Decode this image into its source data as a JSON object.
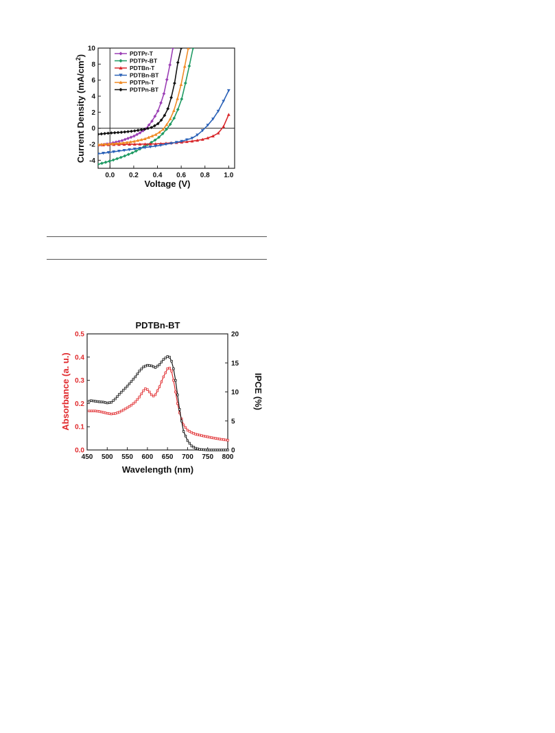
{
  "chart_data": [
    {
      "type": "line",
      "title": "",
      "xlabel": "Voltage (V)",
      "ylabel": "Current Density (mA/cm",
      "ylabel_sup": "2",
      "ylabel_tail": ")",
      "xlim": [
        -0.1,
        1.05
      ],
      "ylim": [
        -5,
        10
      ],
      "xticks": [
        "0.0",
        "0.2",
        "0.4",
        "0.6",
        "0.8",
        "1.0"
      ],
      "xtick_values": [
        0.0,
        0.2,
        0.4,
        0.6,
        0.8,
        1.0
      ],
      "yticks": [
        "-4",
        "-2",
        "0",
        "2",
        "4",
        "6",
        "8",
        "10"
      ],
      "ytick_values": [
        -4,
        -2,
        0,
        2,
        4,
        6,
        8,
        10
      ],
      "legend_position": "top-left",
      "series": [
        {
          "name": "PDTPr-T",
          "color": "#9b3fb5",
          "marker": "diamond",
          "points": [
            [
              -0.1,
              -2.15
            ],
            [
              0.0,
              -1.9
            ],
            [
              0.1,
              -1.55
            ],
            [
              0.2,
              -1.0
            ],
            [
              0.25,
              -0.6
            ],
            [
              0.3,
              -0.1
            ],
            [
              0.35,
              0.8
            ],
            [
              0.4,
              2.0
            ],
            [
              0.45,
              4.0
            ],
            [
              0.5,
              7.5
            ],
            [
              0.53,
              10.0
            ]
          ]
        },
        {
          "name": "PDTPr-BT",
          "color": "#1f9a63",
          "marker": "diamond",
          "points": [
            [
              -0.1,
              -4.5
            ],
            [
              0.0,
              -4.1
            ],
            [
              0.1,
              -3.6
            ],
            [
              0.2,
              -3.0
            ],
            [
              0.3,
              -2.2
            ],
            [
              0.4,
              -1.3
            ],
            [
              0.45,
              -0.6
            ],
            [
              0.5,
              0.3
            ],
            [
              0.55,
              1.5
            ],
            [
              0.6,
              3.4
            ],
            [
              0.65,
              6.5
            ],
            [
              0.7,
              10.0
            ]
          ]
        },
        {
          "name": "PDTBn-T",
          "color": "#d8262a",
          "marker": "triangle-up",
          "points": [
            [
              -0.1,
              -2.1
            ],
            [
              0.0,
              -2.05
            ],
            [
              0.2,
              -2.0
            ],
            [
              0.4,
              -1.95
            ],
            [
              0.6,
              -1.75
            ],
            [
              0.7,
              -1.6
            ],
            [
              0.8,
              -1.35
            ],
            [
              0.9,
              -0.8
            ],
            [
              0.95,
              0.0
            ],
            [
              1.0,
              1.7
            ]
          ]
        },
        {
          "name": "PDTBn-BT",
          "color": "#2b62b8",
          "marker": "triangle-down",
          "points": [
            [
              -0.1,
              -3.2
            ],
            [
              0.0,
              -3.0
            ],
            [
              0.2,
              -2.6
            ],
            [
              0.4,
              -2.2
            ],
            [
              0.6,
              -1.65
            ],
            [
              0.7,
              -1.2
            ],
            [
              0.75,
              -0.7
            ],
            [
              0.8,
              0.0
            ],
            [
              0.85,
              0.8
            ],
            [
              0.9,
              1.8
            ],
            [
              0.95,
              3.2
            ],
            [
              1.0,
              4.7
            ]
          ]
        },
        {
          "name": "PDTPn-T",
          "color": "#f08a24",
          "marker": "triangle-up",
          "points": [
            [
              -0.1,
              -2.05
            ],
            [
              0.0,
              -1.95
            ],
            [
              0.1,
              -1.85
            ],
            [
              0.2,
              -1.65
            ],
            [
              0.3,
              -1.3
            ],
            [
              0.4,
              -0.7
            ],
            [
              0.45,
              -0.1
            ],
            [
              0.5,
              0.9
            ],
            [
              0.55,
              2.6
            ],
            [
              0.6,
              5.5
            ],
            [
              0.64,
              8.5
            ],
            [
              0.66,
              10.0
            ]
          ]
        },
        {
          "name": "PDTPn-BT",
          "color": "#111111",
          "marker": "diamond",
          "points": [
            [
              -0.1,
              -0.75
            ],
            [
              0.0,
              -0.6
            ],
            [
              0.1,
              -0.5
            ],
            [
              0.2,
              -0.35
            ],
            [
              0.3,
              -0.1
            ],
            [
              0.35,
              0.1
            ],
            [
              0.4,
              0.5
            ],
            [
              0.45,
              1.3
            ],
            [
              0.5,
              2.8
            ],
            [
              0.55,
              6.0
            ],
            [
              0.58,
              9.0
            ],
            [
              0.6,
              10.0
            ]
          ]
        }
      ]
    },
    {
      "type": "line",
      "title": "PDTBn-BT",
      "xlabel": "Wavelength (nm)",
      "ylabel_left": "Absorbance (a. u.)",
      "ylabel_right": "IPCE (%)",
      "xlim": [
        450,
        800
      ],
      "ylim_left": [
        0.0,
        0.5
      ],
      "ylim_right": [
        0,
        20
      ],
      "xticks": [
        "450",
        "500",
        "550",
        "600",
        "650",
        "700",
        "750",
        "800"
      ],
      "xtick_values": [
        450,
        500,
        550,
        600,
        650,
        700,
        750,
        800
      ],
      "yticks_left": [
        "0.0",
        "0.1",
        "0.2",
        "0.3",
        "0.4",
        "0.5"
      ],
      "ytick_left_values": [
        0.0,
        0.1,
        0.2,
        0.3,
        0.4,
        0.5
      ],
      "yticks_right": [
        "0",
        "5",
        "10",
        "15",
        "20"
      ],
      "ytick_right_values": [
        0,
        5,
        10,
        15,
        20
      ],
      "left_axis_color": "#e0282b",
      "series": [
        {
          "name": "Absorbance",
          "axis": "left",
          "color": "#e0282b",
          "points": [
            [
              455,
              0.168
            ],
            [
              470,
              0.168
            ],
            [
              480,
              0.166
            ],
            [
              490,
              0.162
            ],
            [
              500,
              0.158
            ],
            [
              510,
              0.155
            ],
            [
              520,
              0.157
            ],
            [
              530,
              0.163
            ],
            [
              540,
              0.172
            ],
            [
              550,
              0.182
            ],
            [
              560,
              0.193
            ],
            [
              570,
              0.207
            ],
            [
              580,
              0.228
            ],
            [
              590,
              0.255
            ],
            [
              595,
              0.264
            ],
            [
              600,
              0.26
            ],
            [
              605,
              0.25
            ],
            [
              610,
              0.238
            ],
            [
              615,
              0.232
            ],
            [
              620,
              0.238
            ],
            [
              630,
              0.272
            ],
            [
              640,
              0.315
            ],
            [
              650,
              0.35
            ],
            [
              653,
              0.358
            ],
            [
              660,
              0.34
            ],
            [
              665,
              0.3
            ],
            [
              670,
              0.25
            ],
            [
              675,
              0.2
            ],
            [
              680,
              0.16
            ],
            [
              690,
              0.108
            ],
            [
              700,
              0.085
            ],
            [
              710,
              0.075
            ],
            [
              720,
              0.068
            ],
            [
              740,
              0.06
            ],
            [
              760,
              0.053
            ],
            [
              780,
              0.047
            ],
            [
              800,
              0.042
            ]
          ]
        },
        {
          "name": "IPCE",
          "axis": "right",
          "color": "#111111",
          "points": [
            [
              455,
              8.4
            ],
            [
              460,
              8.5
            ],
            [
              470,
              8.4
            ],
            [
              480,
              8.3
            ],
            [
              490,
              8.25
            ],
            [
              500,
              8.1
            ],
            [
              510,
              8.2
            ],
            [
              520,
              8.8
            ],
            [
              530,
              9.6
            ],
            [
              540,
              10.3
            ],
            [
              550,
              11.0
            ],
            [
              560,
              11.8
            ],
            [
              570,
              12.6
            ],
            [
              580,
              13.6
            ],
            [
              590,
              14.3
            ],
            [
              600,
              14.6
            ],
            [
              610,
              14.5
            ],
            [
              620,
              14.2
            ],
            [
              630,
              14.7
            ],
            [
              640,
              15.6
            ],
            [
              650,
              16.1
            ],
            [
              655,
              16.0
            ],
            [
              660,
              15.3
            ],
            [
              665,
              14.0
            ],
            [
              670,
              12.0
            ],
            [
              675,
              9.5
            ],
            [
              680,
              7.0
            ],
            [
              685,
              5.0
            ],
            [
              690,
              3.2
            ],
            [
              700,
              1.6
            ],
            [
              710,
              0.7
            ],
            [
              720,
              0.3
            ],
            [
              730,
              0.1
            ],
            [
              740,
              0.05
            ],
            [
              750,
              0.0
            ],
            [
              770,
              0.0
            ],
            [
              800,
              0.0
            ]
          ]
        }
      ]
    }
  ]
}
